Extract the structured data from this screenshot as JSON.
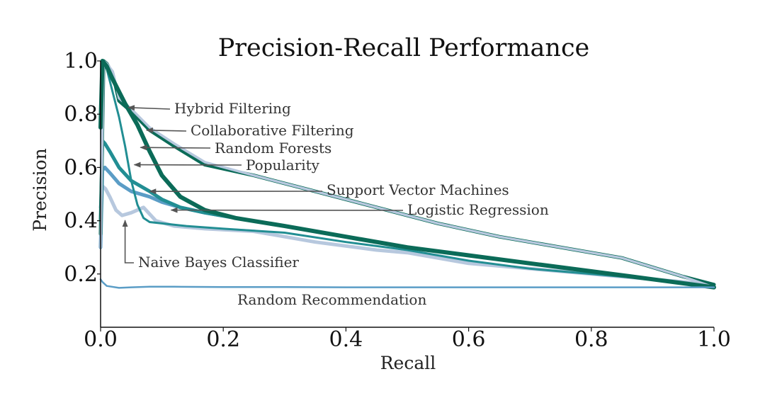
{
  "chart_data": {
    "type": "line",
    "title": "Precision-Recall Performance",
    "xlabel": "Recall",
    "ylabel": "Precision",
    "xlim": [
      0.0,
      1.0
    ],
    "ylim": [
      0.0,
      1.0
    ],
    "xticks": [
      "0.0",
      "0.2",
      "0.4",
      "0.6",
      "0.8",
      "1.0"
    ],
    "yticks": [
      "0.2",
      "0.4",
      "0.6",
      "0.8",
      "1.0"
    ],
    "grid": false,
    "colors": {
      "light": "#b7c8de",
      "dark": "#0b6b58",
      "teal": "#228e93",
      "blue": "#5b9dc6",
      "annotation": "#555555"
    },
    "series": [
      {
        "name": "Hybrid Filtering",
        "color": "#b7c8de",
        "x": [
          0.0,
          0.005,
          0.01,
          0.02,
          0.03,
          0.05,
          0.08,
          0.12,
          0.17,
          0.25,
          0.35,
          0.45,
          0.55,
          0.65,
          0.75,
          0.85,
          0.95,
          1.0
        ],
        "y": [
          0.3,
          1.0,
          0.99,
          0.96,
          0.86,
          0.82,
          0.75,
          0.69,
          0.62,
          0.57,
          0.51,
          0.45,
          0.39,
          0.34,
          0.3,
          0.26,
          0.19,
          0.15
        ]
      },
      {
        "name": "Collaborative Filtering",
        "color": "#0b6b58",
        "x": [
          0.0,
          0.005,
          0.01,
          0.02,
          0.03,
          0.05,
          0.08,
          0.12,
          0.17,
          0.25,
          0.35,
          0.45,
          0.55,
          0.65,
          0.75,
          0.85,
          0.95,
          1.0
        ],
        "y": [
          0.35,
          1.0,
          0.99,
          0.95,
          0.85,
          0.81,
          0.74,
          0.68,
          0.61,
          0.57,
          0.51,
          0.45,
          0.39,
          0.34,
          0.3,
          0.26,
          0.19,
          0.16
        ]
      },
      {
        "name": "Random Forests",
        "color": "#0b6b58",
        "x": [
          0.0,
          0.003,
          0.01,
          0.02,
          0.04,
          0.06,
          0.08,
          0.1,
          0.13,
          0.17,
          0.22,
          0.3,
          0.4,
          0.5,
          0.6,
          0.7,
          0.8,
          0.9,
          1.0
        ],
        "y": [
          0.75,
          1.0,
          0.98,
          0.93,
          0.84,
          0.76,
          0.66,
          0.57,
          0.49,
          0.44,
          0.41,
          0.38,
          0.34,
          0.3,
          0.27,
          0.24,
          0.21,
          0.18,
          0.15
        ]
      },
      {
        "name": "Popularity",
        "color": "#228e93",
        "x": [
          0.0,
          0.003,
          0.01,
          0.02,
          0.03,
          0.04,
          0.05,
          0.06,
          0.07,
          0.08,
          0.1,
          0.14,
          0.2,
          0.3,
          0.4,
          0.5,
          0.6,
          0.7,
          0.8,
          0.9,
          1.0
        ],
        "y": [
          0.4,
          1.0,
          0.97,
          0.88,
          0.79,
          0.68,
          0.55,
          0.46,
          0.41,
          0.395,
          0.39,
          0.38,
          0.37,
          0.355,
          0.32,
          0.29,
          0.25,
          0.22,
          0.2,
          0.18,
          0.15
        ]
      },
      {
        "name": "Support Vector Machines",
        "color": "#228e93",
        "x": [
          0.0,
          0.003,
          0.007,
          0.015,
          0.03,
          0.05,
          0.08,
          0.1,
          0.13,
          0.17,
          0.22,
          0.3,
          0.4,
          0.5,
          0.6,
          0.7,
          0.8,
          0.9,
          1.0
        ],
        "y": [
          0.4,
          0.7,
          0.69,
          0.66,
          0.6,
          0.55,
          0.51,
          0.48,
          0.45,
          0.43,
          0.41,
          0.38,
          0.34,
          0.3,
          0.27,
          0.24,
          0.21,
          0.18,
          0.15
        ]
      },
      {
        "name": "Logistic Regression",
        "color": "#5b9dc6",
        "x": [
          0.0,
          0.003,
          0.007,
          0.015,
          0.03,
          0.05,
          0.08,
          0.1,
          0.13,
          0.17,
          0.22,
          0.3,
          0.4,
          0.5,
          0.6,
          0.7,
          0.8,
          0.9,
          1.0
        ],
        "y": [
          0.3,
          0.59,
          0.6,
          0.58,
          0.54,
          0.51,
          0.49,
          0.47,
          0.45,
          0.43,
          0.41,
          0.38,
          0.34,
          0.3,
          0.27,
          0.24,
          0.21,
          0.18,
          0.15
        ]
      },
      {
        "name": "Naive Bayes Classifier",
        "color": "#b7c8de",
        "x": [
          0.0,
          0.003,
          0.008,
          0.015,
          0.025,
          0.035,
          0.05,
          0.07,
          0.09,
          0.12,
          0.17,
          0.25,
          0.35,
          0.45,
          0.5,
          0.6,
          0.7,
          0.8,
          0.9,
          1.0
        ],
        "y": [
          0.45,
          0.53,
          0.52,
          0.49,
          0.44,
          0.42,
          0.43,
          0.45,
          0.4,
          0.38,
          0.37,
          0.36,
          0.32,
          0.29,
          0.28,
          0.24,
          0.22,
          0.2,
          0.18,
          0.16
        ]
      },
      {
        "name": "Random Recommendation",
        "color": "#5b9dc6",
        "x": [
          0.0,
          0.003,
          0.01,
          0.03,
          0.05,
          0.08,
          0.12,
          0.2,
          0.3,
          0.4,
          0.5,
          0.6,
          0.7,
          0.8,
          0.9,
          1.0
        ],
        "y": [
          0.18,
          0.17,
          0.155,
          0.148,
          0.15,
          0.152,
          0.152,
          0.151,
          0.151,
          0.15,
          0.15,
          0.15,
          0.15,
          0.15,
          0.15,
          0.15
        ]
      }
    ],
    "annotations": [
      {
        "text": "Hybrid Filtering",
        "series": "Hybrid Filtering",
        "x": 0.045,
        "y": 0.825
      },
      {
        "text": "Collaborative Filtering",
        "series": "Collaborative Filtering",
        "x": 0.075,
        "y": 0.74
      },
      {
        "text": "Random Forests",
        "series": "Random Forests",
        "x": 0.065,
        "y": 0.675
      },
      {
        "text": "Popularity",
        "series": "Popularity",
        "x": 0.055,
        "y": 0.61
      },
      {
        "text": "Support Vector Machines",
        "series": "Support Vector Machines",
        "x": 0.08,
        "y": 0.51
      },
      {
        "text": "Logistic Regression",
        "series": "Logistic Regression",
        "x": 0.115,
        "y": 0.44
      },
      {
        "text": "Naive Bayes Classifier",
        "series": "Naive Bayes Classifier",
        "x": 0.04,
        "y": 0.42
      },
      {
        "text": "Random Recommendation",
        "series": "Random Recommendation",
        "x": 0.55,
        "y": 0.15
      }
    ]
  }
}
